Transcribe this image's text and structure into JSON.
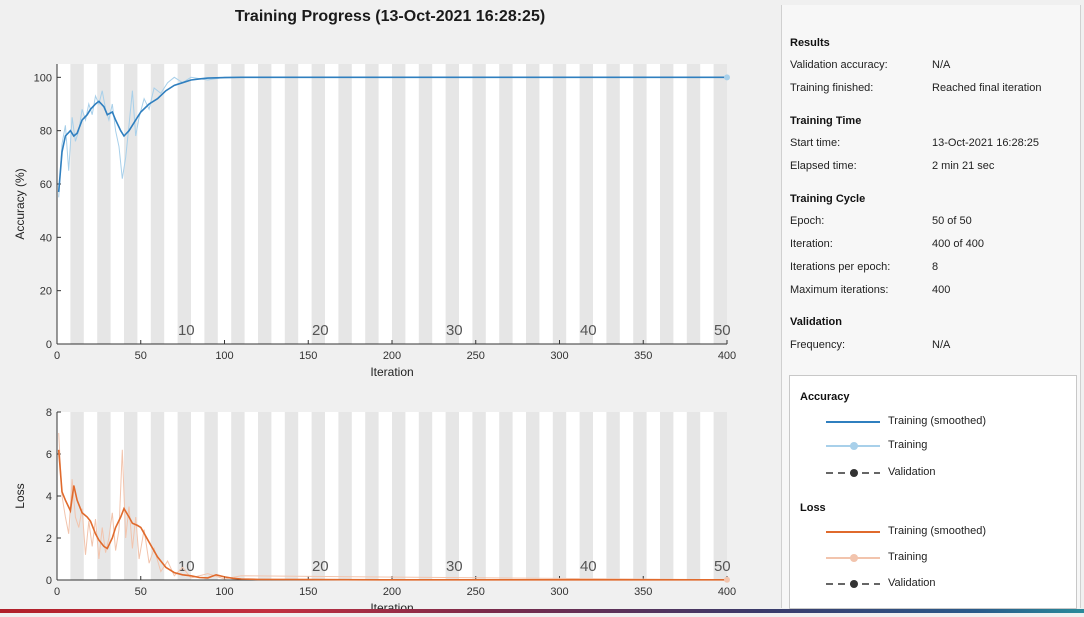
{
  "window": {
    "title": "Training Progress (13-Oct-2021 16:28:25)"
  },
  "accuracy_plot": {
    "ylabel": "Accuracy (%)",
    "xlabel": "Iteration",
    "y_ticks": [
      "0",
      "20",
      "40",
      "60",
      "80",
      "100"
    ],
    "x_ticks": [
      "0",
      "50",
      "100",
      "150",
      "200",
      "250",
      "300",
      "350",
      "400"
    ],
    "epoch_labels": [
      "10",
      "20",
      "30",
      "40",
      "50"
    ]
  },
  "loss_plot": {
    "ylabel": "Loss",
    "xlabel": "Iteration",
    "y_ticks": [
      "0",
      "2",
      "4",
      "6",
      "8"
    ],
    "x_ticks": [
      "0",
      "50",
      "100",
      "150",
      "200",
      "250",
      "300",
      "350",
      "400"
    ],
    "epoch_labels": [
      "10",
      "20",
      "30",
      "40",
      "50"
    ]
  },
  "colors": {
    "accuracy_smoothed": "#2f7fbf",
    "accuracy_raw": "#a8d0ea",
    "loss_smoothed": "#e06a2c",
    "loss_raw": "#f2c4ad",
    "validation": "#333333",
    "epoch_band": "#e6e6e6"
  },
  "chart_data": [
    {
      "type": "line",
      "ylabel": "Accuracy (%)",
      "xlabel": "Iteration",
      "xlim": [
        0,
        400
      ],
      "ylim": [
        0,
        105
      ],
      "epochs": 50,
      "iterations_per_epoch": 8,
      "series": [
        {
          "name": "Training (smoothed)",
          "x": [
            1,
            3,
            5,
            8,
            10,
            12,
            15,
            18,
            20,
            23,
            25,
            28,
            30,
            33,
            35,
            38,
            40,
            43,
            45,
            48,
            50,
            55,
            60,
            65,
            70,
            75,
            80,
            85,
            90,
            100,
            110,
            150,
            200,
            250,
            300,
            350,
            400
          ],
          "values": [
            57,
            72,
            78,
            80,
            78,
            79,
            84,
            86,
            88,
            90,
            91,
            89,
            86,
            87,
            84,
            80,
            78,
            80,
            82,
            85,
            87,
            90,
            92,
            95,
            97,
            98,
            99,
            99.4,
            99.7,
            99.9,
            100,
            100,
            100,
            100,
            100,
            100,
            100
          ]
        },
        {
          "name": "Training",
          "x": [
            1,
            3,
            5,
            7,
            9,
            11,
            13,
            15,
            17,
            19,
            21,
            23,
            25,
            27,
            29,
            31,
            33,
            35,
            37,
            39,
            41,
            43,
            45,
            47,
            49,
            52,
            55,
            58,
            62,
            66,
            70,
            75,
            80,
            90,
            100,
            400
          ],
          "values": [
            55,
            75,
            82,
            65,
            85,
            76,
            80,
            88,
            84,
            90,
            86,
            93,
            90,
            95,
            88,
            84,
            90,
            80,
            74,
            62,
            70,
            82,
            95,
            78,
            85,
            92,
            88,
            96,
            94,
            98,
            100,
            98,
            100,
            99,
            100,
            100
          ]
        }
      ]
    },
    {
      "type": "line",
      "ylabel": "Loss",
      "xlabel": "Iteration",
      "xlim": [
        0,
        400
      ],
      "ylim": [
        0,
        8
      ],
      "epochs": 50,
      "iterations_per_epoch": 8,
      "series": [
        {
          "name": "Training (smoothed)",
          "x": [
            1,
            3,
            5,
            8,
            10,
            12,
            15,
            18,
            20,
            23,
            25,
            28,
            30,
            33,
            35,
            38,
            40,
            43,
            45,
            48,
            50,
            55,
            60,
            65,
            70,
            75,
            80,
            85,
            90,
            95,
            100,
            105,
            110,
            120,
            150,
            200,
            250,
            300,
            350,
            400
          ],
          "values": [
            6.2,
            4.2,
            3.8,
            3.3,
            4.5,
            3.8,
            3.2,
            3.0,
            2.8,
            2.2,
            1.9,
            1.6,
            1.5,
            2.0,
            2.5,
            3.0,
            3.4,
            3.0,
            2.7,
            2.6,
            2.5,
            1.8,
            1.1,
            0.6,
            0.35,
            0.25,
            0.2,
            0.12,
            0.1,
            0.25,
            0.15,
            0.08,
            0.05,
            0.03,
            0.02,
            0.01,
            0.01,
            0.01,
            0.01,
            0.01
          ]
        },
        {
          "name": "Training",
          "x": [
            1,
            3,
            5,
            7,
            9,
            11,
            13,
            15,
            17,
            19,
            21,
            23,
            25,
            27,
            29,
            31,
            33,
            35,
            37,
            39,
            41,
            43,
            45,
            47,
            49,
            52,
            55,
            58,
            62,
            66,
            70,
            75,
            80,
            90,
            100,
            110,
            400
          ],
          "values": [
            7.0,
            4.0,
            3.0,
            2.2,
            4.8,
            3.0,
            2.5,
            3.4,
            1.2,
            2.8,
            1.6,
            2.9,
            1.0,
            2.5,
            1.3,
            2.0,
            3.2,
            1.4,
            2.4,
            6.2,
            2.0,
            3.5,
            1.5,
            3.0,
            1.0,
            2.4,
            0.8,
            1.5,
            0.4,
            0.9,
            0.2,
            0.6,
            0.1,
            0.3,
            0.05,
            0.2,
            0.01
          ]
        }
      ]
    }
  ],
  "side_panel": {
    "results": {
      "title": "Results",
      "validation_accuracy_label": "Validation accuracy:",
      "validation_accuracy_value": "N/A",
      "training_finished_label": "Training finished:",
      "training_finished_value": "Reached final iteration"
    },
    "training_time": {
      "title": "Training Time",
      "start_time_label": "Start time:",
      "start_time_value": "13-Oct-2021 16:28:25",
      "elapsed_time_label": "Elapsed time:",
      "elapsed_time_value": "2 min 21 sec"
    },
    "training_cycle": {
      "title": "Training Cycle",
      "epoch_label": "Epoch:",
      "epoch_value": "50 of 50",
      "iteration_label": "Iteration:",
      "iteration_value": "400 of 400",
      "iterations_per_epoch_label": "Iterations per epoch:",
      "iterations_per_epoch_value": "8",
      "max_iterations_label": "Maximum iterations:",
      "max_iterations_value": "400"
    },
    "validation": {
      "title": "Validation",
      "frequency_label": "Frequency:",
      "frequency_value": "N/A"
    }
  },
  "legend": {
    "accuracy_title": "Accuracy",
    "accuracy_items": [
      "Training (smoothed)",
      "Training",
      "Validation"
    ],
    "loss_title": "Loss",
    "loss_items": [
      "Training (smoothed)",
      "Training",
      "Validation"
    ]
  }
}
